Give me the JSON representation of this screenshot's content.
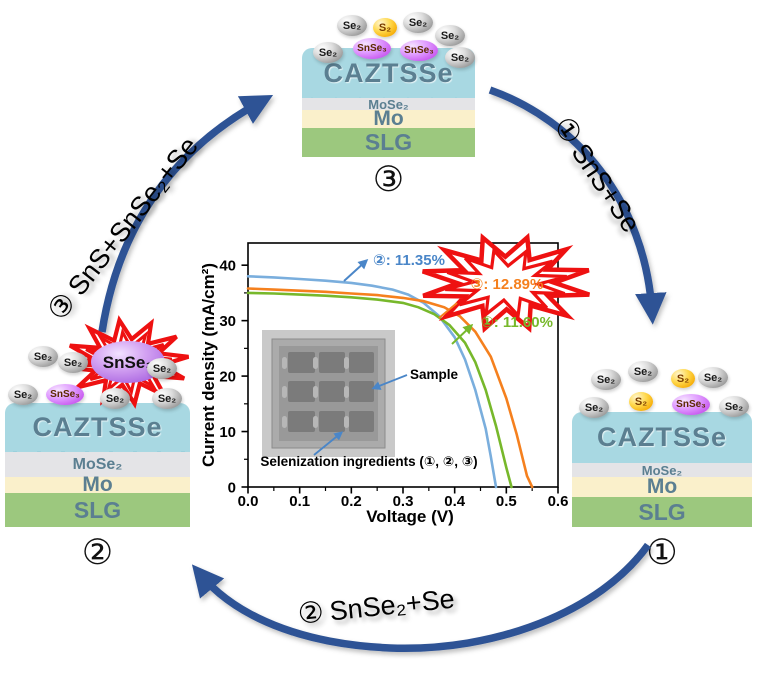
{
  "figure": {
    "description": "Selenization cycle of CAZTSSe thin-film solar cells with three ingredient routes and resulting J-V curves"
  },
  "colors": {
    "cycle_arrow_blue": "#2e5395",
    "burst_red": "#ee1111",
    "layer_caztsse": "#a8d8e2",
    "layer_mose2": "#e4e4e7",
    "layer_mo": "#faf0cb",
    "layer_slg": "#9cc87e",
    "layer_text": "#5b7f91",
    "curve_blue": "#7aaedd",
    "curve_green": "#77b82b",
    "curve_orange": "#f5801e"
  },
  "arrows": {
    "step1": {
      "number": "①",
      "label": "SnS+Se"
    },
    "step2": {
      "number": "②",
      "label": "SnSe₂+Se"
    },
    "step3": {
      "number": "③",
      "label": "SnS+SnSe₂+Se"
    }
  },
  "stacks": {
    "top": {
      "number": "③",
      "layers": [
        "CAZTSSe",
        "MoSe₂",
        "Mo",
        "SLG"
      ],
      "floating_particles": [
        {
          "label": "Se₂"
        },
        {
          "label": "S₂"
        },
        {
          "label": "Se₂"
        },
        {
          "label": "Se₂"
        }
      ],
      "surface_particles": [
        {
          "label": "Se₂"
        },
        {
          "label": "SnSe₃"
        },
        {
          "label": "SnSe₃"
        },
        {
          "label": "Se₂"
        }
      ]
    },
    "right": {
      "number": "①",
      "layers": [
        "CAZTSSe",
        "MoSe₂",
        "Mo",
        "SLG"
      ],
      "floating_particles": [
        {
          "label": "Se₂"
        },
        {
          "label": "Se₂"
        },
        {
          "label": "S₂"
        },
        {
          "label": "Se₂"
        }
      ],
      "surface_particles": [
        {
          "label": "Se₂"
        },
        {
          "label": "S₂"
        },
        {
          "label": "SnSe₃"
        },
        {
          "label": "Se₂"
        }
      ]
    },
    "left": {
      "number": "②",
      "layers": [
        "CAZTSSe",
        "MoSe₂",
        "Mo",
        "SLG"
      ],
      "burst_label": "SnSe₃",
      "floating_particles": [
        {
          "label": "Se₂"
        },
        {
          "label": "Se₂"
        },
        {
          "label": "Se₂"
        }
      ],
      "surface_particles": [
        {
          "label": "Se₂"
        },
        {
          "label": "SnSe₃"
        },
        {
          "label": "Se₂"
        },
        {
          "label": "Se₂"
        }
      ]
    }
  },
  "chart_data": {
    "type": "line",
    "title": "",
    "xlabel": "Voltage (V)",
    "ylabel": "Current density (mA/cm²)",
    "xlim": [
      0.0,
      0.6
    ],
    "ylim": [
      0,
      44
    ],
    "xticks": [
      "0.0",
      "0.1",
      "0.2",
      "0.3",
      "0.4",
      "0.5",
      "0.6"
    ],
    "yticks": [
      0,
      10,
      20,
      30,
      40
    ],
    "grid": false,
    "legend_position": "none",
    "series": [
      {
        "name": "②",
        "efficiency": "11.35%",
        "label": "②: 11.35%",
        "color": "#7aaedd",
        "label_color": "#4a86c8",
        "x": [
          0,
          0.05,
          0.1,
          0.15,
          0.2,
          0.24,
          0.28,
          0.31,
          0.34,
          0.37,
          0.4,
          0.42,
          0.44,
          0.46,
          0.47,
          0.48
        ],
        "y": [
          38,
          37.8,
          37.5,
          37.2,
          36.8,
          36.3,
          35.6,
          34.7,
          33.2,
          30.8,
          27.0,
          23.0,
          17.5,
          10.5,
          5.5,
          0
        ]
      },
      {
        "name": "①",
        "efficiency": "11.60%",
        "label": "①: 11.60%",
        "color": "#77b82b",
        "label_color": "#77b82b",
        "x": [
          0,
          0.05,
          0.1,
          0.15,
          0.2,
          0.25,
          0.3,
          0.33,
          0.36,
          0.39,
          0.42,
          0.44,
          0.46,
          0.48,
          0.5,
          0.51
        ],
        "y": [
          35,
          34.9,
          34.7,
          34.5,
          34.2,
          33.8,
          33.2,
          32.4,
          31.2,
          29.2,
          26.0,
          22.5,
          17.5,
          11.0,
          3.5,
          0
        ]
      },
      {
        "name": "③",
        "efficiency": "12.89%",
        "label": "③: 12.89%",
        "color": "#f5801e",
        "label_color": "#f5801e",
        "x": [
          0,
          0.05,
          0.1,
          0.15,
          0.2,
          0.25,
          0.3,
          0.34,
          0.38,
          0.41,
          0.44,
          0.47,
          0.5,
          0.52,
          0.54,
          0.55
        ],
        "y": [
          35.8,
          35.6,
          35.4,
          35.2,
          34.9,
          34.6,
          34.1,
          33.5,
          32.4,
          30.8,
          28.0,
          23.5,
          16.0,
          9.5,
          2.0,
          0
        ]
      }
    ],
    "inset": {
      "sample_label": "Sample",
      "caption": "Selenization ingredients (①, ②, ③)"
    }
  }
}
